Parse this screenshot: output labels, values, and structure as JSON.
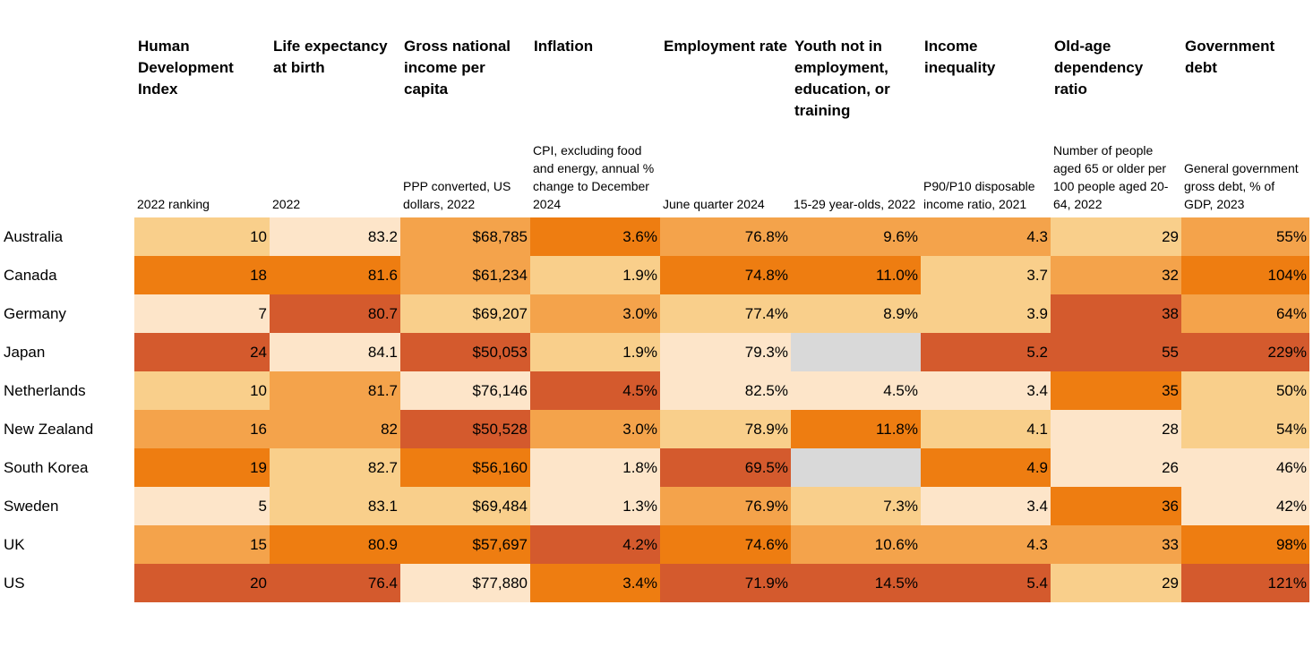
{
  "table": {
    "columns": [
      {
        "title": "Human Development Index",
        "subtitle": "2022 ranking"
      },
      {
        "title": "Life expectancy at birth",
        "subtitle": "2022"
      },
      {
        "title": "Gross national income per capita",
        "subtitle": "PPP converted, US dollars, 2022"
      },
      {
        "title": "Inflation",
        "subtitle": "CPI, excluding food and energy, annual % change to December 2024"
      },
      {
        "title": "Employment rate",
        "subtitle": "June quarter 2024"
      },
      {
        "title": "Youth not in employment, education, or training",
        "subtitle": "15-29 year-olds, 2022"
      },
      {
        "title": "Income inequality",
        "subtitle": "P90/P10 disposable income ratio, 2021"
      },
      {
        "title": "Old-age dependency ratio",
        "subtitle": "Number of people aged 65 or older per 100 people aged 20-64, 2022"
      },
      {
        "title": "Government debt",
        "subtitle": "General government gross debt, % of GDP, 2023"
      }
    ],
    "row_labels": [
      "Australia",
      "Canada",
      "Germany",
      "Japan",
      "Netherlands",
      "New Zealand",
      "South Korea",
      "Sweden",
      "UK",
      "US"
    ],
    "rows": [
      [
        "10",
        "83.2",
        "$68,785",
        "3.6%",
        "76.8%",
        "9.6%",
        "4.3",
        "29",
        "55%"
      ],
      [
        "18",
        "81.6",
        "$61,234",
        "1.9%",
        "74.8%",
        "11.0%",
        "3.7",
        "32",
        "104%"
      ],
      [
        "7",
        "80.7",
        "$69,207",
        "3.0%",
        "77.4%",
        "8.9%",
        "3.9",
        "38",
        "64%"
      ],
      [
        "24",
        "84.1",
        "$50,053",
        "1.9%",
        "79.3%",
        null,
        "5.2",
        "55",
        "229%"
      ],
      [
        "10",
        "81.7",
        "$76,146",
        "4.5%",
        "82.5%",
        "4.5%",
        "3.4",
        "35",
        "50%"
      ],
      [
        "16",
        "82",
        "$50,528",
        "3.0%",
        "78.9%",
        "11.8%",
        "4.1",
        "28",
        "54%"
      ],
      [
        "19",
        "82.7",
        "$56,160",
        "1.8%",
        "69.5%",
        null,
        "4.9",
        "26",
        "46%"
      ],
      [
        "5",
        "83.1",
        "$69,484",
        "1.3%",
        "76.9%",
        "7.3%",
        "3.4",
        "36",
        "42%"
      ],
      [
        "15",
        "80.9",
        "$57,697",
        "4.2%",
        "74.6%",
        "10.6%",
        "4.3",
        "33",
        "98%"
      ],
      [
        "20",
        "76.4",
        "$77,880",
        "3.4%",
        "71.9%",
        "14.5%",
        "5.4",
        "29",
        "121%"
      ]
    ],
    "colors": [
      [
        "#f9cf8b",
        "#fde5c9",
        "#f4a34b",
        "#ee7d11",
        "#f4a34b",
        "#f4a34b",
        "#f4a34b",
        "#f9cf8b",
        "#f4a34b"
      ],
      [
        "#ee7d11",
        "#ee7d11",
        "#f4a34b",
        "#f9cf8b",
        "#ee7d11",
        "#ee7d11",
        "#f9cf8b",
        "#f4a34b",
        "#ee7d11"
      ],
      [
        "#fde5c9",
        "#d45a2d",
        "#f9cf8b",
        "#f4a34b",
        "#f9cf8b",
        "#f9cf8b",
        "#f9cf8b",
        "#d45a2d",
        "#f4a34b"
      ],
      [
        "#d45a2d",
        "#fde5c9",
        "#d45a2d",
        "#f9cf8b",
        "#fde5c9",
        "#d9d9d9",
        "#d45a2d",
        "#d45a2d",
        "#d45a2d"
      ],
      [
        "#f9cf8b",
        "#f4a34b",
        "#fde5c9",
        "#d45a2d",
        "#fde5c9",
        "#fde5c9",
        "#fde5c9",
        "#ee7d11",
        "#f9cf8b"
      ],
      [
        "#f4a34b",
        "#f4a34b",
        "#d45a2d",
        "#f4a34b",
        "#f9cf8b",
        "#ee7d11",
        "#f9cf8b",
        "#fde5c9",
        "#f9cf8b"
      ],
      [
        "#ee7d11",
        "#f9cf8b",
        "#ee7d11",
        "#fde5c9",
        "#d45a2d",
        "#d9d9d9",
        "#ee7d11",
        "#fde5c9",
        "#fde5c9"
      ],
      [
        "#fde5c9",
        "#f9cf8b",
        "#f9cf8b",
        "#fde5c9",
        "#f4a34b",
        "#f9cf8b",
        "#fde5c9",
        "#ee7d11",
        "#fde5c9"
      ],
      [
        "#f4a34b",
        "#ee7d11",
        "#ee7d11",
        "#d45a2d",
        "#ee7d11",
        "#f4a34b",
        "#f4a34b",
        "#f4a34b",
        "#ee7d11"
      ],
      [
        "#d45a2d",
        "#d45a2d",
        "#fde5c9",
        "#ee7d11",
        "#d45a2d",
        "#d45a2d",
        "#d45a2d",
        "#f9cf8b",
        "#d45a2d"
      ]
    ]
  }
}
